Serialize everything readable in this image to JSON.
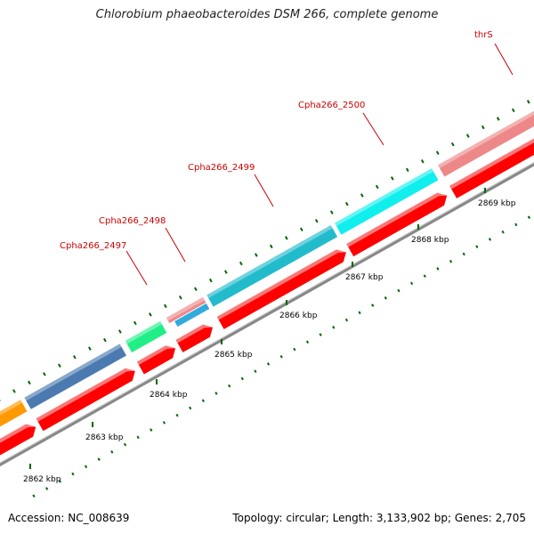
{
  "title": "Chlorobium phaeobacteroides DSM 266, complete genome",
  "footer": {
    "accession": "Accession: NC_008639",
    "summary": "Topology: circular; Length: 3,133,902 bp; Genes: 2,705"
  },
  "colors": {
    "backbone": "#888888",
    "cds_forward": "#ff0000",
    "label": "#cc0000",
    "tick": "#006600"
  },
  "ruler": [
    {
      "label": "2862 kbp"
    },
    {
      "label": "2863 kbp"
    },
    {
      "label": "2864 kbp"
    },
    {
      "label": "2865 kbp"
    },
    {
      "label": "2866 kbp"
    },
    {
      "label": "2867 kbp"
    },
    {
      "label": "2868 kbp"
    },
    {
      "label": "2869 kbp"
    }
  ],
  "genes": [
    {
      "name": "",
      "color": "#ff9900"
    },
    {
      "name": "",
      "color": "#4a7aaf"
    },
    {
      "name": "Cpha266_2497",
      "color": "#22ee88"
    },
    {
      "name": "Cpha266_2498",
      "color": "#ee8888"
    },
    {
      "name": "Cpha266_2499",
      "color": "#22bbcc"
    },
    {
      "name": "Cpha266_2500",
      "color": "#11eeee"
    },
    {
      "name": "thrS",
      "color": "#ee8888"
    }
  ]
}
